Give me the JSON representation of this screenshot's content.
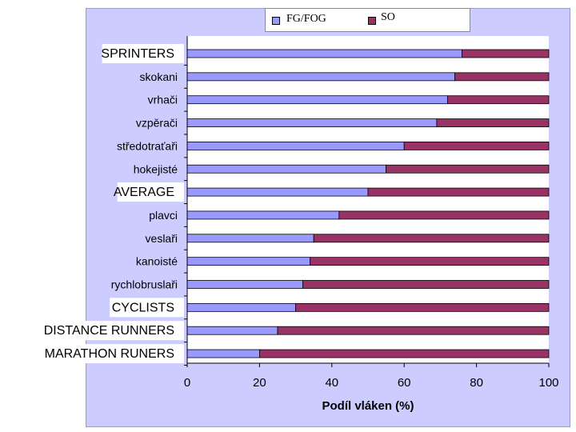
{
  "chart_data": {
    "type": "bar",
    "orientation": "horizontal",
    "stacked": "percent",
    "categories": [
      "SPRINTERS",
      "skokani",
      "vrhači",
      "vzpěrači",
      "středotraťaři",
      "hokejisté",
      "AVERAGE",
      "plavci",
      "veslaři",
      "kanoisté",
      "rychlobruslaři",
      "CYCLISTS",
      "DISTANCE RUNNERS",
      "MARATHON RUNERS"
    ],
    "series": [
      {
        "name": "FG/FOG",
        "color": "#9999ff",
        "values": [
          76,
          74,
          72,
          69,
          60,
          55,
          50,
          42,
          35,
          34,
          32,
          30,
          25,
          20
        ]
      },
      {
        "name": "SO",
        "color": "#993366",
        "values": [
          24,
          26,
          28,
          31,
          40,
          45,
          50,
          58,
          65,
          66,
          68,
          70,
          75,
          80
        ]
      }
    ],
    "xlabel": "Podíl vláken (%)",
    "xlim": [
      0,
      100
    ],
    "xticks": [
      0,
      20,
      40,
      60,
      80,
      100
    ],
    "legend_position": "top",
    "grid": false,
    "highlighted_labels": [
      "SPRINTERS",
      "AVERAGE",
      "CYCLISTS",
      "DISTANCE RUNNERS",
      "MARATHON RUNERS"
    ]
  }
}
